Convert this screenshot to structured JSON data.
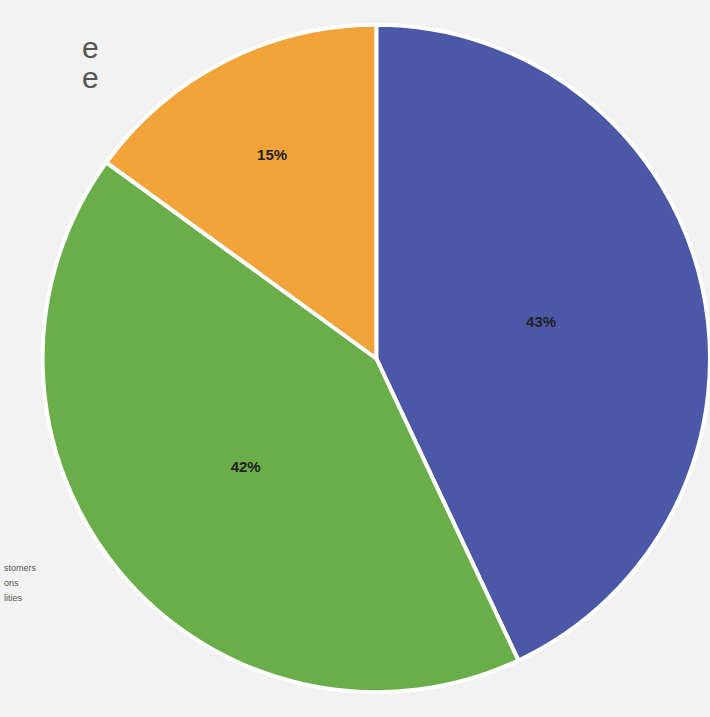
{
  "chart_data": {
    "type": "pie",
    "values": [
      43,
      42,
      15
    ],
    "value_labels": [
      "43%",
      "42%",
      "15%"
    ],
    "colors": [
      "#4b57a7",
      "#6aae4a",
      "#f2a33a"
    ],
    "data_labels": true,
    "annotations": [
      "e",
      "e",
      "stomers",
      "ons",
      "lities"
    ]
  }
}
